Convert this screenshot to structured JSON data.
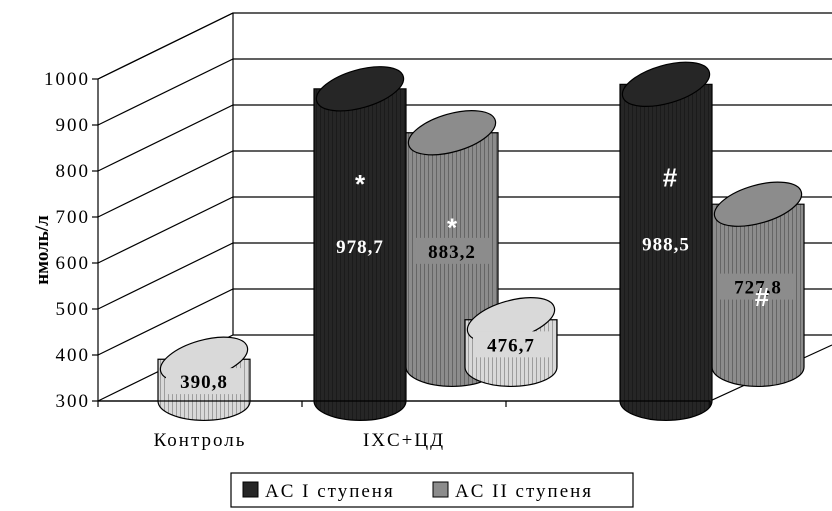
{
  "chart_data": {
    "type": "bar",
    "subtype": "3d-cylinder",
    "title": "",
    "xlabel": "",
    "ylabel": "нмоль/л",
    "ylim": [
      300,
      1000
    ],
    "yticks": [
      "300",
      "400",
      "500",
      "600",
      "700",
      "800",
      "900",
      "1000"
    ],
    "grid": true,
    "legend_position": "bottom",
    "groups": [
      {
        "label": "Контроль",
        "bars": [
          {
            "series": "Контроль",
            "value": 390.8,
            "label": "390,8",
            "marker": "",
            "color": "#d9d9d9"
          }
        ]
      },
      {
        "label": "IXC+ЦД",
        "bars": [
          {
            "series": "AC I ступеня",
            "value": 978.7,
            "label": "978,7",
            "marker": "*",
            "color": "#262626"
          },
          {
            "series": "AC II ступеня",
            "value": 883.2,
            "label": "883,2",
            "marker": "*",
            "color": "#8c8c8c"
          },
          {
            "series": "Контроль",
            "value": 476.7,
            "label": "476,7",
            "marker": "",
            "color": "#d9d9d9"
          }
        ]
      },
      {
        "label": "",
        "bars": [
          {
            "series": "AC I ступеня",
            "value": 988.5,
            "label": "988,5",
            "marker": "#",
            "color": "#262626"
          },
          {
            "series": "AC II ступеня",
            "value": 727.8,
            "label": "727,8",
            "marker": "#",
            "color": "#8c8c8c"
          }
        ]
      }
    ],
    "legend": [
      {
        "label": "AC I ступеня",
        "color": "#262626"
      },
      {
        "label": "AC II ступеня",
        "color": "#8c8c8c"
      }
    ]
  }
}
